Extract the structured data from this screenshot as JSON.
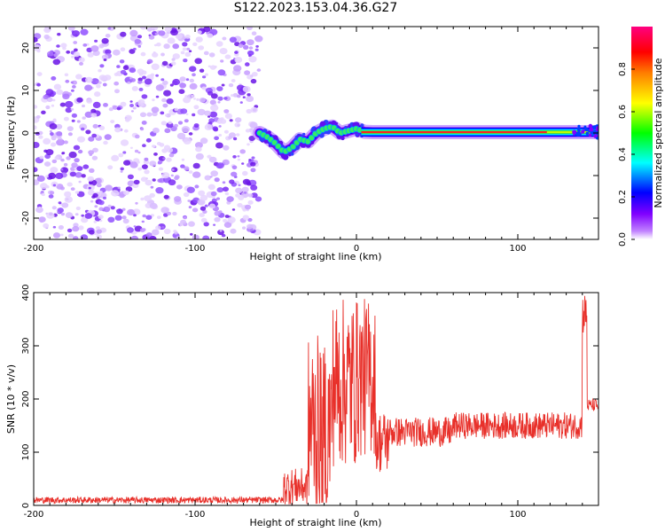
{
  "title": "S122.2023.153.04.36.G27",
  "chart_data": [
    {
      "type": "heatmap",
      "id": "spectrogram",
      "xlabel": "Height of straight line (km)",
      "ylabel": "Frequency (Hz)",
      "xlim": [
        -200,
        150
      ],
      "ylim": [
        -25,
        25
      ],
      "xticks": [
        -200,
        -100,
        0,
        100
      ],
      "xtick_labels": [
        "-200",
        "-100",
        "0",
        "100"
      ],
      "yticks": [
        -20,
        -10,
        0,
        10,
        20
      ],
      "ytick_labels": [
        "-20",
        "-10",
        "0",
        "10",
        "20"
      ],
      "noise_region_x": [
        -200,
        -60
      ],
      "ridge": {
        "x": [
          -60,
          -55,
          -50,
          -45,
          -40,
          -35,
          -30,
          -25,
          -20,
          -15,
          -10,
          -5,
          0,
          5,
          10,
          20,
          40,
          60,
          80,
          100,
          120,
          140,
          150
        ],
        "y": [
          0,
          -1,
          -2.5,
          -4.5,
          -3.5,
          -1.5,
          -2,
          0,
          1,
          1.5,
          0,
          0.5,
          1,
          0.3,
          0.2,
          0.2,
          0.2,
          0.2,
          0.2,
          0.2,
          0.2,
          0.2,
          0.2
        ]
      },
      "grid": false,
      "colorbar": {
        "label": "Normalized spectral amplitude",
        "ticks": [
          0.0,
          0.2,
          0.4,
          0.6,
          0.8
        ],
        "tick_labels": [
          "0.0",
          "0.2",
          "0.4",
          "0.6",
          "0.8"
        ],
        "range": [
          0,
          1
        ],
        "colors": [
          "#ffffff",
          "#8000ff",
          "#0000ff",
          "#00ffff",
          "#00ff00",
          "#ffff00",
          "#ff8000",
          "#ff0000",
          "#ff0080"
        ]
      }
    },
    {
      "type": "line",
      "id": "snr",
      "xlabel": "Height of straight line (km)",
      "ylabel": "SNR (10 * v/v)",
      "xlim": [
        -200,
        150
      ],
      "ylim": [
        0,
        400
      ],
      "xticks": [
        -200,
        -100,
        0,
        100
      ],
      "xtick_labels": [
        "-200",
        "-100",
        "0",
        "100"
      ],
      "yticks": [
        0,
        100,
        200,
        300,
        400
      ],
      "ytick_labels": [
        "0",
        "100",
        "200",
        "300",
        "400"
      ],
      "grid": false,
      "line_color": "#e8302a",
      "segments": [
        {
          "x0": -200,
          "x1": -45,
          "mean": 10,
          "amp": 6
        },
        {
          "x0": -45,
          "x1": -30,
          "mean": 35,
          "amp": 35
        },
        {
          "x0": -30,
          "x1": -15,
          "mean": 150,
          "amp": 170
        },
        {
          "x0": -15,
          "x1": 0,
          "mean": 230,
          "amp": 160
        },
        {
          "x0": 0,
          "x1": 12,
          "mean": 240,
          "amp": 150
        },
        {
          "x0": 12,
          "x1": 20,
          "mean": 120,
          "amp": 60
        },
        {
          "x0": 20,
          "x1": 60,
          "mean": 138,
          "amp": 28
        },
        {
          "x0": 60,
          "x1": 140,
          "mean": 150,
          "amp": 25
        },
        {
          "x0": 140,
          "x1": 143,
          "mean": 360,
          "amp": 40
        },
        {
          "x0": 143,
          "x1": 150,
          "mean": 188,
          "amp": 12
        }
      ]
    }
  ]
}
